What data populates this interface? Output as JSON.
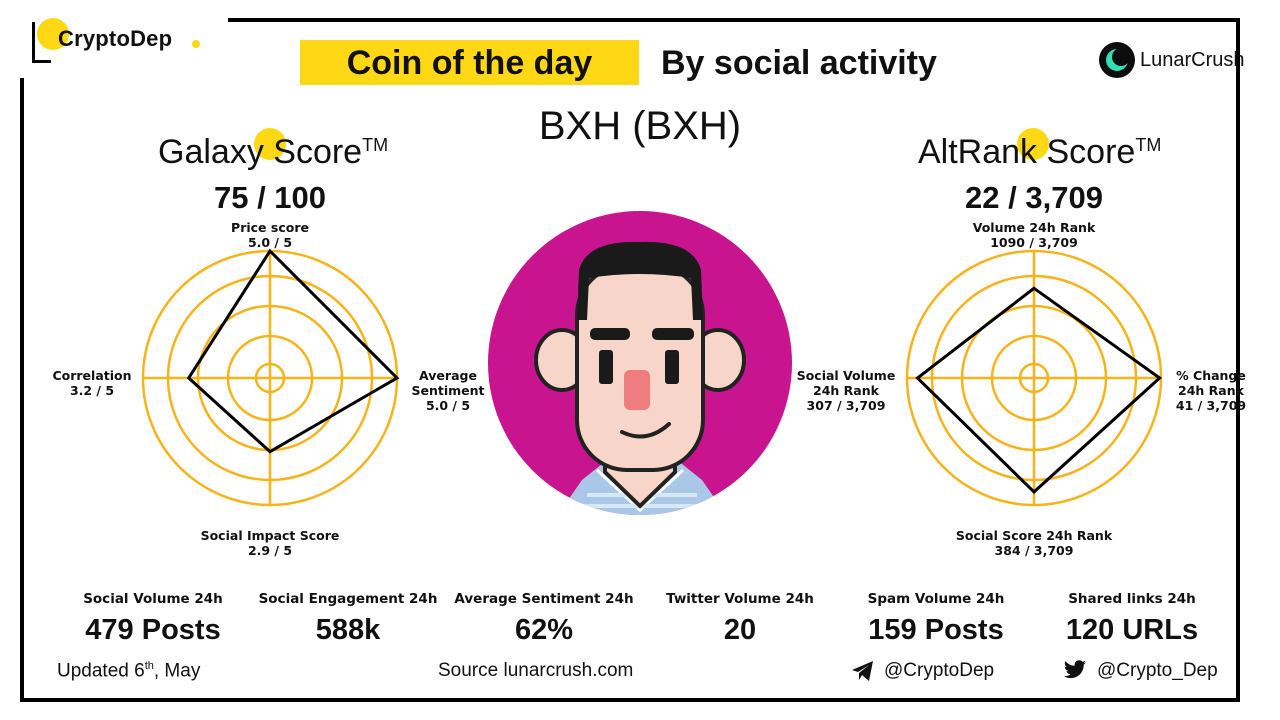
{
  "brand": {
    "name": "CryptoDep"
  },
  "header": {
    "coin_of_the_day": "Coin of the day",
    "by_social_activity": "By social activity",
    "partner": "LunarCrush",
    "coin_name": "BXH (BXH)"
  },
  "galaxy": {
    "title": "Galaxy Score",
    "tm": "TM",
    "value": "75 / 100",
    "radar": {
      "top": {
        "name": "Price score",
        "value": "5.0 / 5",
        "score": 5.0
      },
      "right": {
        "name1": "Average",
        "name2": "Sentiment",
        "value": "5.0 / 5",
        "score": 5.0
      },
      "bottom": {
        "name": "Social Impact Score",
        "value": "2.9 / 5",
        "score": 2.9
      },
      "left": {
        "name": "Correlation",
        "value": "3.2 / 5",
        "score": 3.2
      },
      "max": 5
    }
  },
  "altrank": {
    "title": "AltRank Score",
    "tm": "TM",
    "value": "22 / 3,709",
    "radar": {
      "top": {
        "name": "Volume 24h Rank",
        "value": "1090  / 3,709",
        "rank": 1090
      },
      "right": {
        "name1": "% Change",
        "name2": "24h Rank",
        "value": "41 / 3,709",
        "rank": 41
      },
      "bottom": {
        "name": "Social Score 24h Rank",
        "value": "384  / 3,709",
        "rank": 384
      },
      "left": {
        "name1": "Social Volume",
        "name2": "24h Rank",
        "value": "307 / 3,709",
        "rank": 307
      },
      "total": 3709
    }
  },
  "stats": [
    {
      "label": "Social Volume 24h",
      "value": "479 Posts"
    },
    {
      "label": "Social Engagement 24h",
      "value": "588k"
    },
    {
      "label": "Average Sentiment 24h",
      "value": "62%"
    },
    {
      "label": "Twitter Volume 24h",
      "value": "20"
    },
    {
      "label": "Spam Volume 24h",
      "value": "159 Posts"
    },
    {
      "label": "Shared links 24h",
      "value": "120 URLs"
    }
  ],
  "footer": {
    "updated_prefix": "Updated  6",
    "updated_sup": "th",
    "updated_suffix": ", May",
    "source": "Source   lunarcrush.com",
    "telegram": "@CryptoDep",
    "twitter": "@Crypto_Dep"
  },
  "colors": {
    "accent_yellow": "#ffd815",
    "ring_orange": "#f6b41b",
    "avatar_bg": "#c9148f",
    "black": "#000000"
  },
  "icons": [
    "telegram-icon",
    "twitter-icon",
    "lunarcrush-logo-icon",
    "cryptodep-logo"
  ]
}
